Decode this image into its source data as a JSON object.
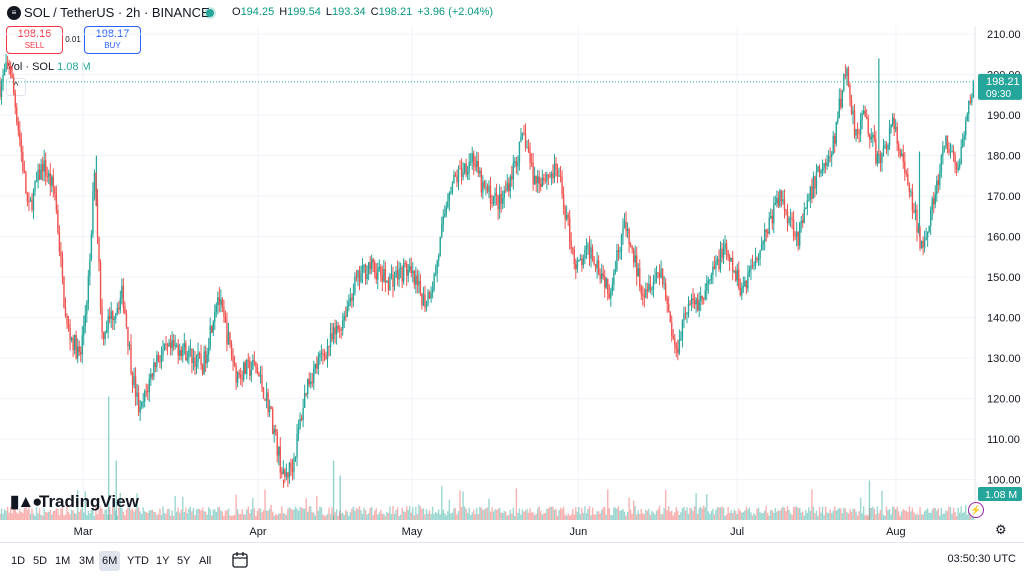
{
  "header": {
    "symbol_title": "SOL / TetherUS · 2h · BINANCE",
    "ohlc": [
      {
        "label": "O",
        "value": "194.25"
      },
      {
        "label": "H",
        "value": "199.54"
      },
      {
        "label": "L",
        "value": "193.34"
      },
      {
        "label": "C",
        "value": "198.21"
      }
    ],
    "change": "+3.96 (+2.04%)"
  },
  "trade": {
    "sell_price": "198.16",
    "sell_label": "SELL",
    "spread": "0.01",
    "buy_price": "198.17",
    "buy_label": "BUY"
  },
  "volume_legend": {
    "label": "Vol · SOL",
    "value": "1.08 M"
  },
  "watermark": "TradingView",
  "bottom": {
    "timeframes": [
      "1D",
      "5D",
      "1M",
      "3M",
      "6M",
      "YTD",
      "1Y",
      "5Y",
      "All"
    ],
    "active_timeframe": "6M",
    "clock": "03:50:30 UTC"
  },
  "colors": {
    "up": "#26a69a",
    "down": "#ef5350",
    "grid": "#f0f3fa",
    "accent": "#2962ff"
  },
  "icons": [
    "sol-logo-icon",
    "live-dot-icon",
    "collapse-chevron-icon",
    "tradingview-logo-icon",
    "calendar-icon",
    "gear-icon",
    "flash-icon"
  ],
  "chart_data": {
    "type": "candlestick",
    "ylim": [
      92,
      212
    ],
    "yticks": [
      100,
      110,
      120,
      130,
      140,
      150,
      160,
      170,
      180,
      190,
      200,
      210
    ],
    "ytick_labels": [
      "100.00",
      "110.00",
      "120.00",
      "130.00",
      "140.00",
      "150.00",
      "160.00",
      "170.00",
      "180.00",
      "190.00",
      "200.00",
      "210.00"
    ],
    "months": [
      {
        "label": "Mar",
        "t": 0.088
      },
      {
        "label": "Apr",
        "t": 0.273
      },
      {
        "label": "May",
        "t": 0.436
      },
      {
        "label": "Jun",
        "t": 0.612
      },
      {
        "label": "Jul",
        "t": 0.78
      },
      {
        "label": "Aug",
        "t": 0.948
      }
    ],
    "path": [
      [
        0.0,
        197
      ],
      [
        0.01,
        203
      ],
      [
        0.02,
        186
      ],
      [
        0.03,
        166
      ],
      [
        0.045,
        178
      ],
      [
        0.058,
        171
      ],
      [
        0.07,
        138
      ],
      [
        0.085,
        130
      ],
      [
        0.095,
        152
      ],
      [
        0.1,
        178
      ],
      [
        0.108,
        136
      ],
      [
        0.13,
        146
      ],
      [
        0.14,
        126
      ],
      [
        0.148,
        116
      ],
      [
        0.165,
        130
      ],
      [
        0.19,
        133
      ],
      [
        0.215,
        128
      ],
      [
        0.23,
        146
      ],
      [
        0.25,
        126
      ],
      [
        0.27,
        128
      ],
      [
        0.285,
        118
      ],
      [
        0.3,
        100
      ],
      [
        0.31,
        104
      ],
      [
        0.325,
        124
      ],
      [
        0.345,
        132
      ],
      [
        0.36,
        138
      ],
      [
        0.375,
        148
      ],
      [
        0.39,
        153
      ],
      [
        0.41,
        149
      ],
      [
        0.43,
        152
      ],
      [
        0.45,
        144
      ],
      [
        0.46,
        150
      ],
      [
        0.475,
        172
      ],
      [
        0.5,
        180
      ],
      [
        0.51,
        172
      ],
      [
        0.53,
        168
      ],
      [
        0.555,
        185
      ],
      [
        0.565,
        174
      ],
      [
        0.59,
        176
      ],
      [
        0.61,
        152
      ],
      [
        0.625,
        157
      ],
      [
        0.645,
        147
      ],
      [
        0.66,
        163
      ],
      [
        0.68,
        147
      ],
      [
        0.7,
        152
      ],
      [
        0.715,
        131
      ],
      [
        0.725,
        142
      ],
      [
        0.745,
        145
      ],
      [
        0.765,
        157
      ],
      [
        0.785,
        147
      ],
      [
        0.805,
        158
      ],
      [
        0.825,
        170
      ],
      [
        0.845,
        160
      ],
      [
        0.865,
        176
      ],
      [
        0.88,
        180
      ],
      [
        0.895,
        202
      ],
      [
        0.905,
        186
      ],
      [
        0.915,
        190
      ],
      [
        0.93,
        178
      ],
      [
        0.945,
        188
      ],
      [
        0.965,
        168
      ],
      [
        0.975,
        158
      ],
      [
        0.99,
        170
      ],
      [
        1.0,
        183
      ],
      [
        1.015,
        177
      ],
      [
        1.03,
        198.2
      ]
    ],
    "hlines": [
      [
        0.102,
        180
      ],
      [
        0.3,
        98
      ],
      [
        0.93,
        204
      ],
      [
        0.973,
        181
      ]
    ],
    "last_price": {
      "value": 198.21,
      "label": "198.21",
      "countdown": "09:30"
    },
    "volume": {
      "last_label": "1.08 M",
      "spikes": [
        [
          0.115,
          0.25
        ],
        [
          0.123,
          0.12
        ],
        [
          0.353,
          0.12
        ],
        [
          0.36,
          0.09
        ],
        [
          0.92,
          0.08
        ]
      ]
    }
  }
}
